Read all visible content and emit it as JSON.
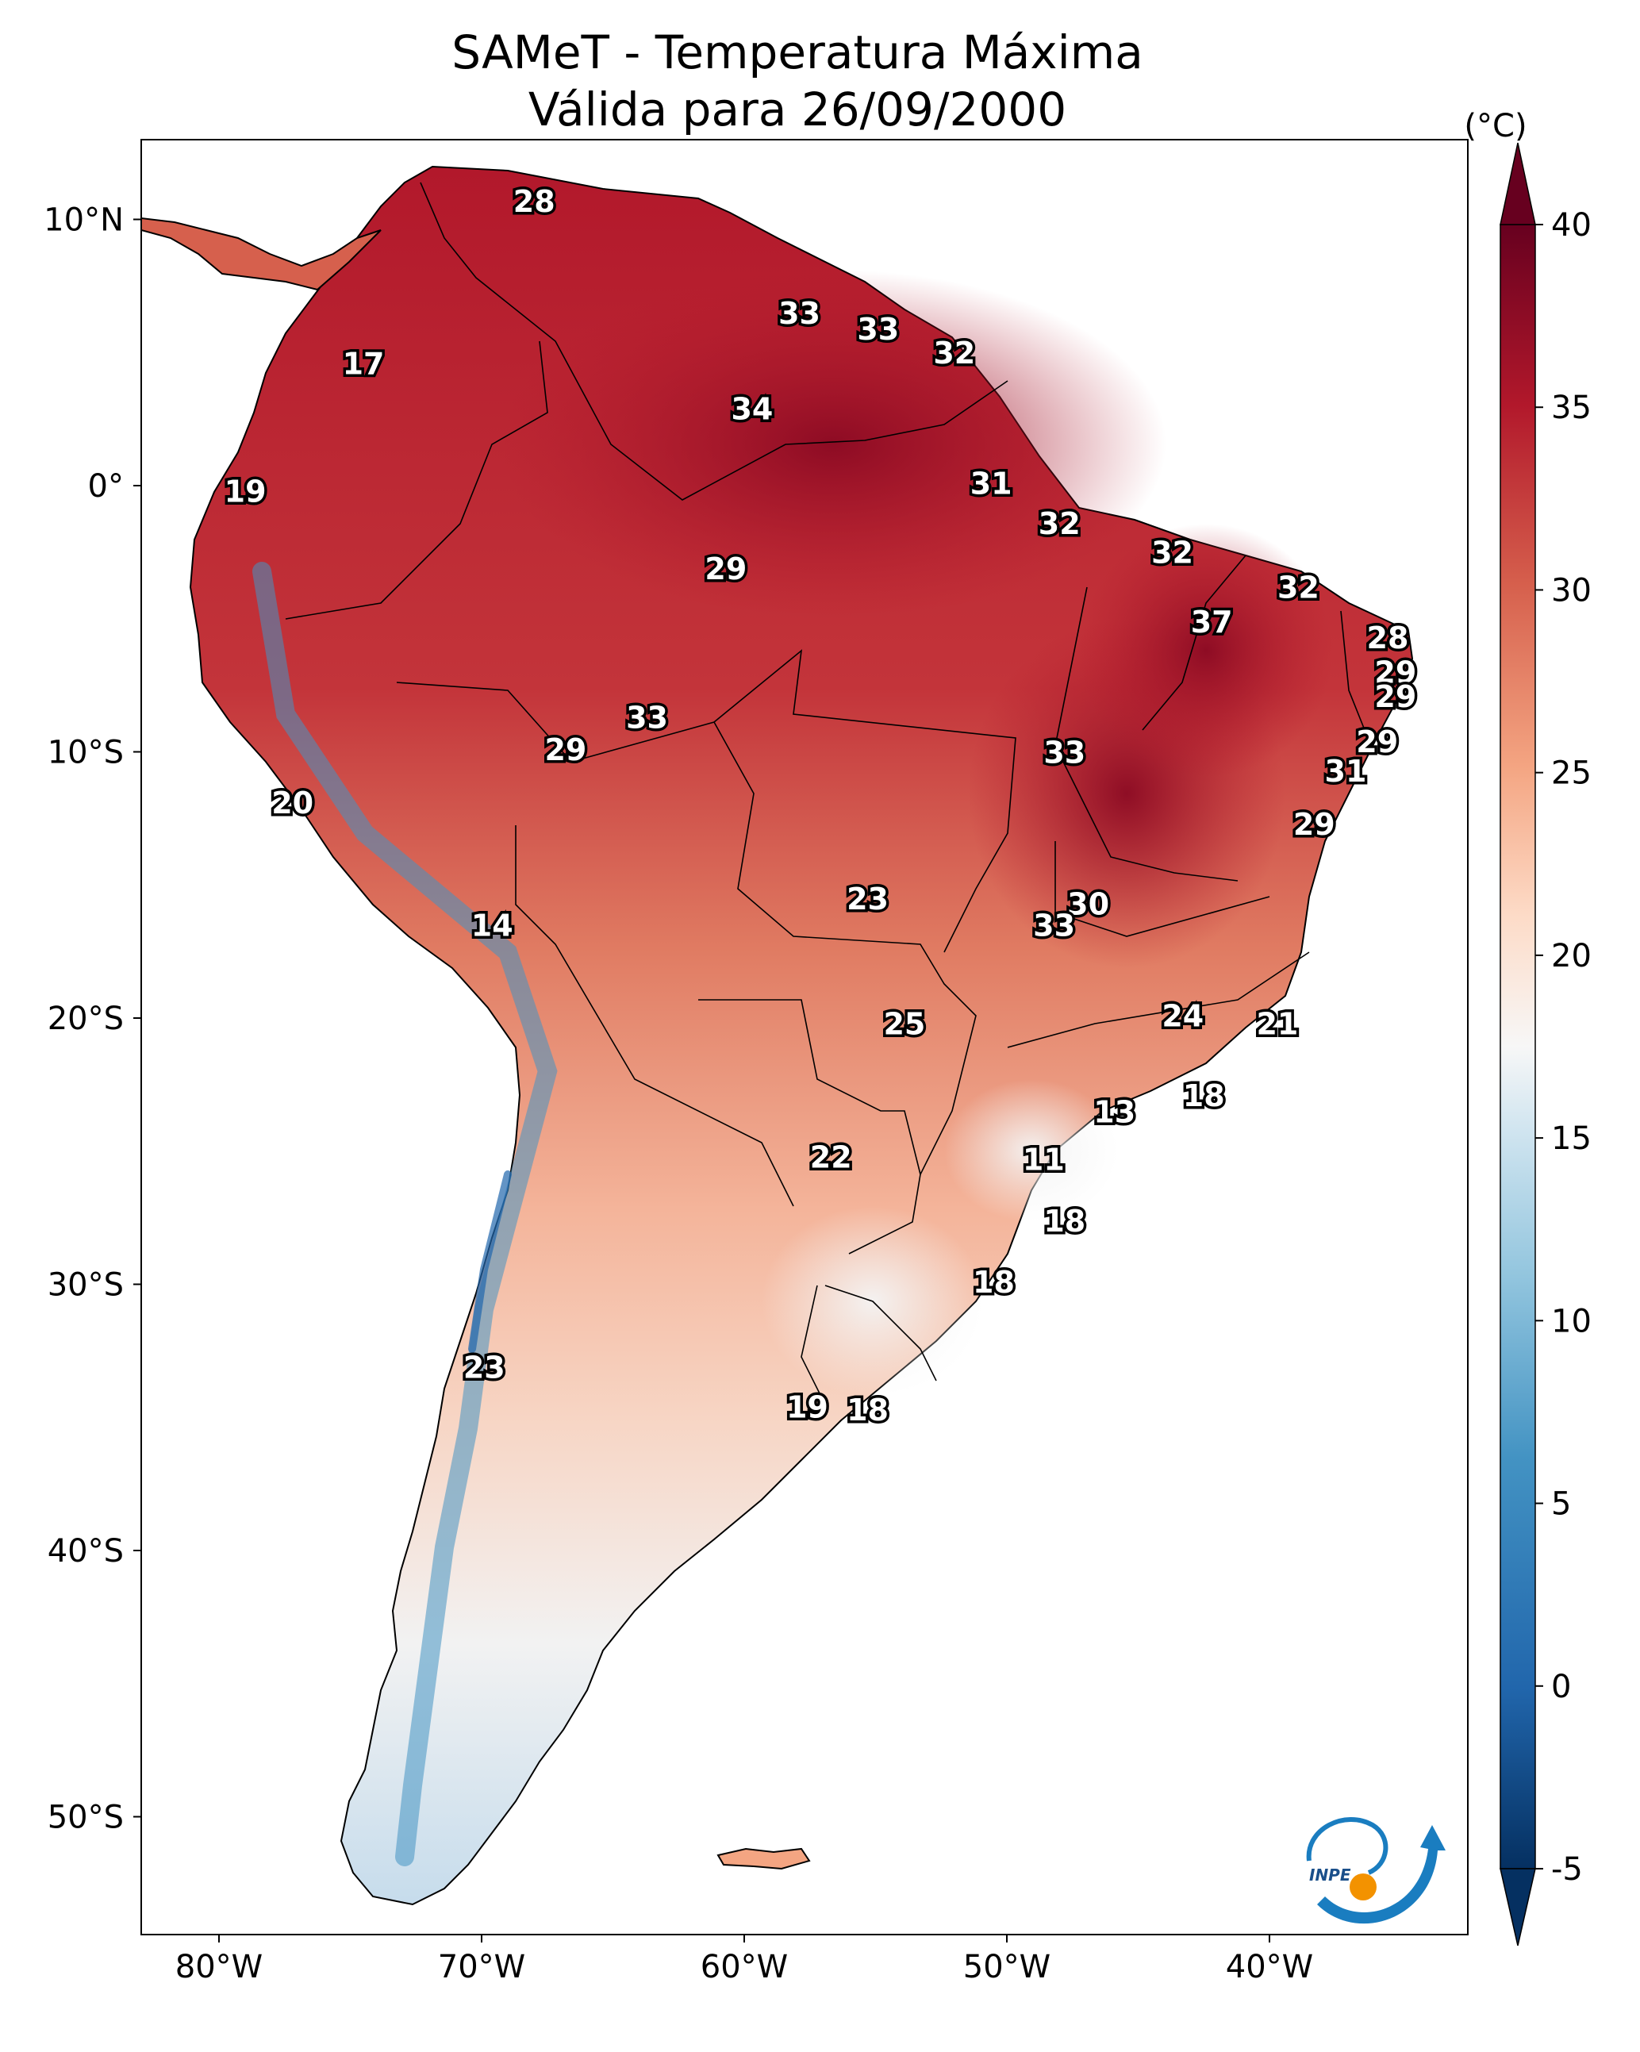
{
  "title": {
    "line1": "SAMeT - Temperatura Máxima",
    "line2": "Válida para 26/09/2000"
  },
  "map": {
    "lon_ticks": [
      "80°W",
      "70°W",
      "60°W",
      "50°W",
      "40°W"
    ],
    "lat_ticks": [
      "10°N",
      "0°",
      "10°S",
      "20°S",
      "30°S",
      "40°S",
      "50°S"
    ],
    "station_labels": [
      {
        "value": "28",
        "lon": -68.0,
        "lat": 10.6
      },
      {
        "value": "17",
        "lon": -74.5,
        "lat": 4.5
      },
      {
        "value": "33",
        "lon": -57.9,
        "lat": 6.4
      },
      {
        "value": "33",
        "lon": -54.9,
        "lat": 5.8
      },
      {
        "value": "32",
        "lon": -52.0,
        "lat": 4.9
      },
      {
        "value": "34",
        "lon": -59.7,
        "lat": 2.8
      },
      {
        "value": "19",
        "lon": -79.0,
        "lat": -0.3
      },
      {
        "value": "31",
        "lon": -50.6,
        "lat": 0.0
      },
      {
        "value": "32",
        "lon": -48.0,
        "lat": -1.5
      },
      {
        "value": "32",
        "lon": -43.7,
        "lat": -2.6
      },
      {
        "value": "29",
        "lon": -60.7,
        "lat": -3.2
      },
      {
        "value": "32",
        "lon": -38.9,
        "lat": -3.9
      },
      {
        "value": "37",
        "lon": -42.2,
        "lat": -5.2
      },
      {
        "value": "28",
        "lon": -35.5,
        "lat": -5.8
      },
      {
        "value": "29",
        "lon": -35.2,
        "lat": -7.1
      },
      {
        "value": "29",
        "lon": -35.2,
        "lat": -8.0
      },
      {
        "value": "33",
        "lon": -63.7,
        "lat": -8.8
      },
      {
        "value": "29",
        "lon": -66.8,
        "lat": -10.0
      },
      {
        "value": "33",
        "lon": -47.8,
        "lat": -10.1
      },
      {
        "value": "29",
        "lon": -35.9,
        "lat": -9.7
      },
      {
        "value": "31",
        "lon": -37.1,
        "lat": -10.8
      },
      {
        "value": "20",
        "lon": -77.2,
        "lat": -12.0
      },
      {
        "value": "29",
        "lon": -38.3,
        "lat": -12.8
      },
      {
        "value": "23",
        "lon": -55.3,
        "lat": -15.6
      },
      {
        "value": "30",
        "lon": -46.9,
        "lat": -15.8
      },
      {
        "value": "14",
        "lon": -69.6,
        "lat": -16.6
      },
      {
        "value": "33",
        "lon": -48.2,
        "lat": -16.6
      },
      {
        "value": "24",
        "lon": -43.3,
        "lat": -20.0
      },
      {
        "value": "21",
        "lon": -39.7,
        "lat": -20.3
      },
      {
        "value": "25",
        "lon": -53.9,
        "lat": -20.3
      },
      {
        "value": "18",
        "lon": -42.5,
        "lat": -23.0
      },
      {
        "value": "13",
        "lon": -45.9,
        "lat": -23.6
      },
      {
        "value": "22",
        "lon": -56.7,
        "lat": -25.3
      },
      {
        "value": "11",
        "lon": -48.6,
        "lat": -25.4
      },
      {
        "value": "18",
        "lon": -47.8,
        "lat": -27.7
      },
      {
        "value": "18",
        "lon": -50.5,
        "lat": -30.0
      },
      {
        "value": "23",
        "lon": -69.9,
        "lat": -33.2
      },
      {
        "value": "19",
        "lon": -57.6,
        "lat": -34.7
      },
      {
        "value": "18",
        "lon": -55.3,
        "lat": -34.8
      }
    ]
  },
  "colorbar": {
    "unit": "(°C)",
    "tick_labels": [
      "40",
      "35",
      "30",
      "25",
      "20",
      "15",
      "10",
      "5",
      "0",
      "-5"
    ],
    "min": -5,
    "max": 40
  },
  "logo": {
    "text": "INPE"
  },
  "colors": {
    "hot": "#67001f",
    "warm": "#d6604d",
    "neutral": "#f7f7f7",
    "cool": "#4393c3",
    "cold": "#053061",
    "logo_blue": "#1a7dc0",
    "logo_orange": "#f39200"
  }
}
